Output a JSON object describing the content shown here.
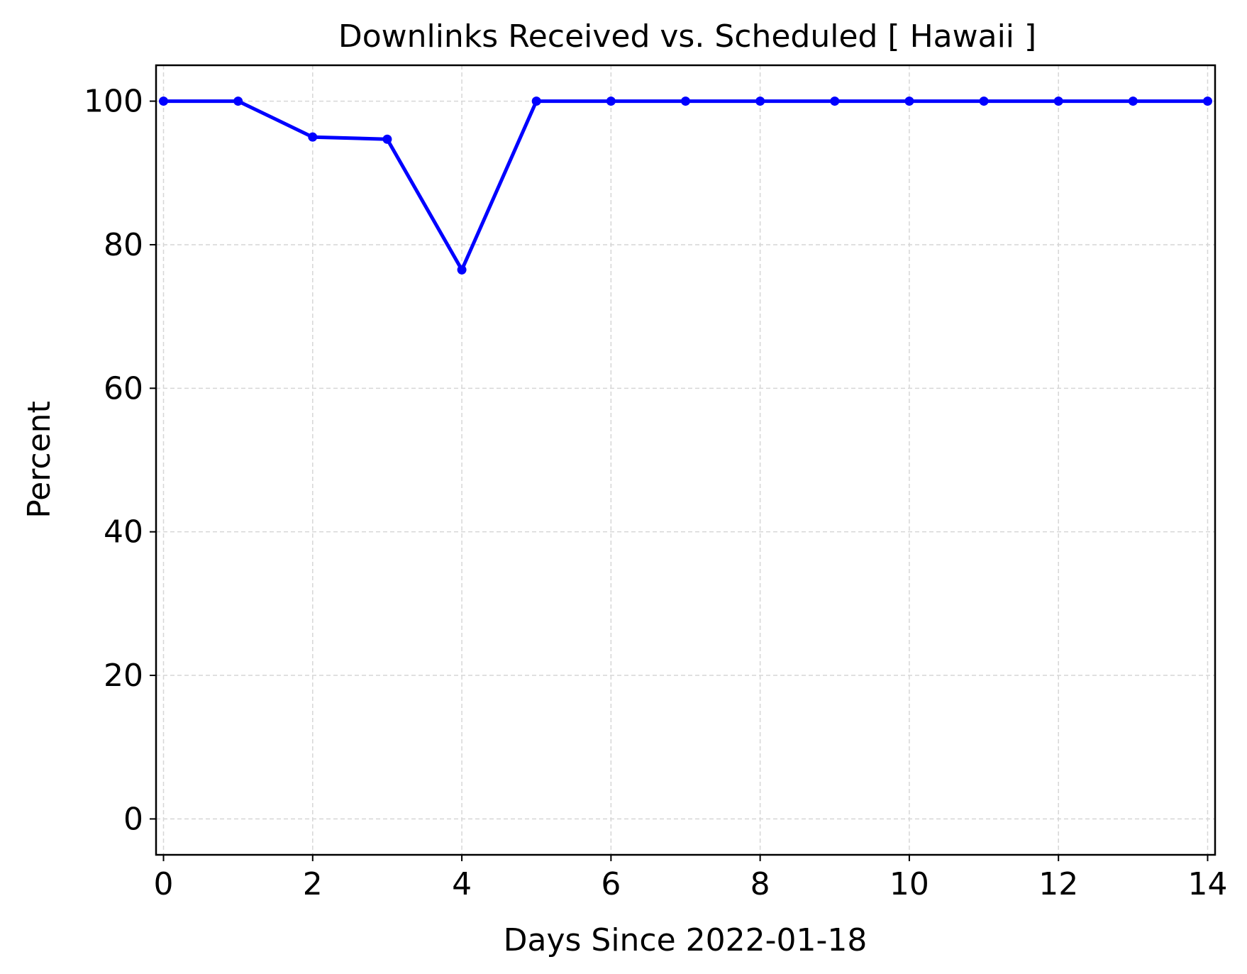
{
  "chart_data": {
    "type": "line",
    "title": "Downlinks Received vs. Scheduled [ Hawaii ]",
    "xlabel": "Days Since 2022-01-18",
    "ylabel": "Percent",
    "xlim": [
      -0.1,
      14.1
    ],
    "ylim": [
      -5,
      105
    ],
    "xticks": [
      0,
      2,
      4,
      6,
      8,
      10,
      12,
      14
    ],
    "yticks": [
      0,
      20,
      40,
      60,
      80,
      100
    ],
    "grid": true,
    "series": [
      {
        "color": "#0000ff",
        "marker": "dot",
        "x": [
          0,
          1,
          2,
          3,
          4,
          5,
          6,
          7,
          8,
          9,
          10,
          11,
          12,
          13,
          14
        ],
        "y": [
          100,
          100,
          95,
          94.7,
          76.5,
          100,
          100,
          100,
          100,
          100,
          100,
          100,
          100,
          100,
          100
        ]
      }
    ]
  }
}
